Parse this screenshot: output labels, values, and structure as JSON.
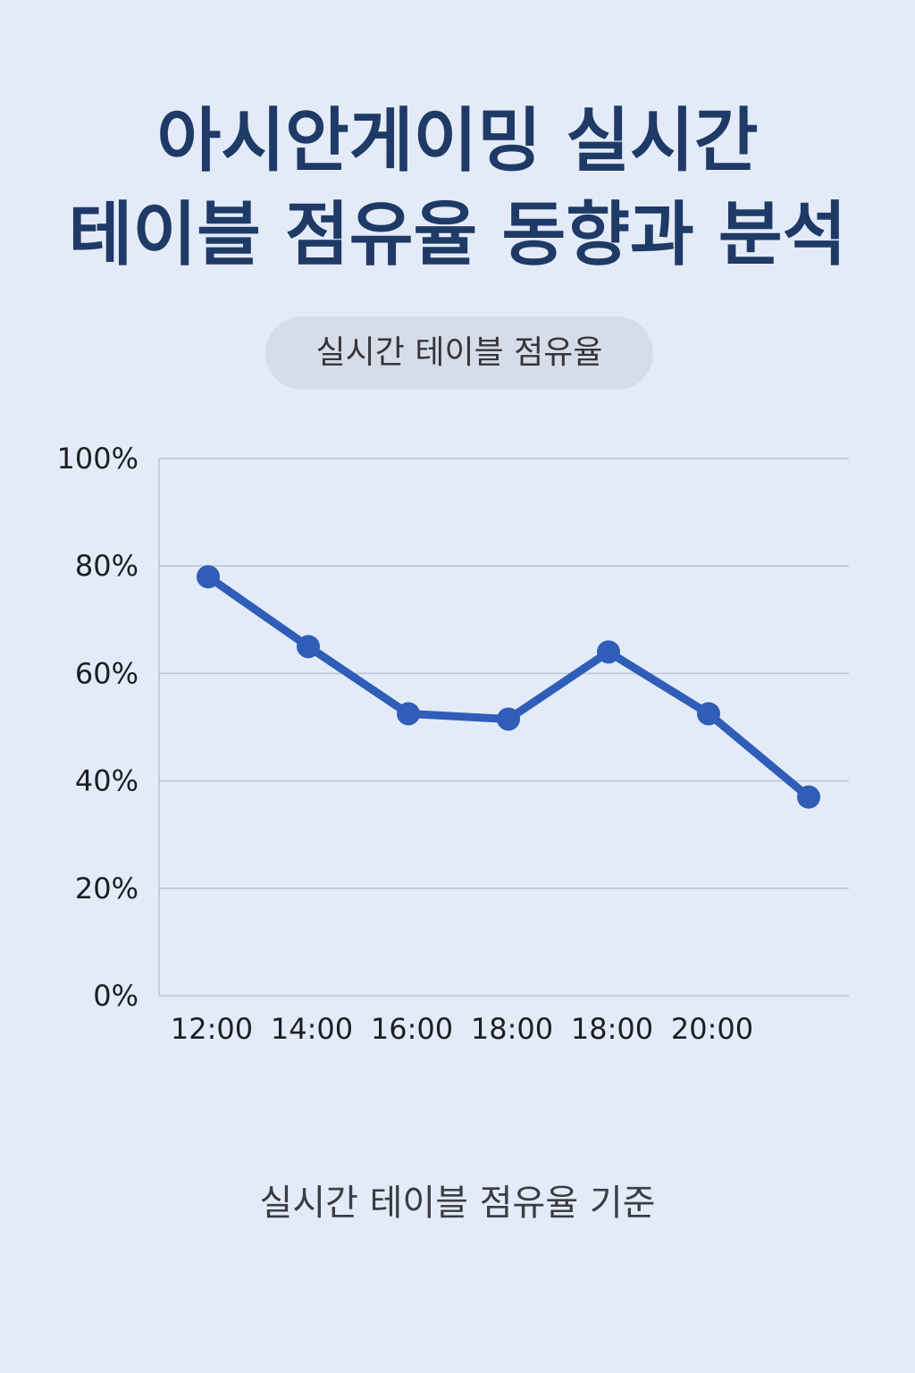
{
  "title": {
    "line1": "아시안게이밍 실시간",
    "line2": "테이블 점유율 동향과 분석"
  },
  "legend_pill": "실시간 테이블 점유율",
  "caption": "실시간 테이블 점유율 기준",
  "colors": {
    "background": "#e3ebf8",
    "title": "#1f3a66",
    "line": "#2f5db8",
    "grid": "#b9c3d3"
  },
  "chart_data": {
    "type": "line",
    "title": "",
    "xlabel": "",
    "ylabel": "",
    "ylim": [
      0,
      100
    ],
    "y_ticks": [
      "0%",
      "20%",
      "40%",
      "60%",
      "80%",
      "100%"
    ],
    "categories": [
      "12:00",
      "14:00",
      "16:00",
      "18:00",
      "18:00",
      "20:00",
      ""
    ],
    "series": [
      {
        "name": "실시간 테이블 점유율",
        "values": [
          78,
          65,
          52.5,
          51.5,
          64,
          52.5,
          37
        ]
      }
    ],
    "grid": true
  }
}
